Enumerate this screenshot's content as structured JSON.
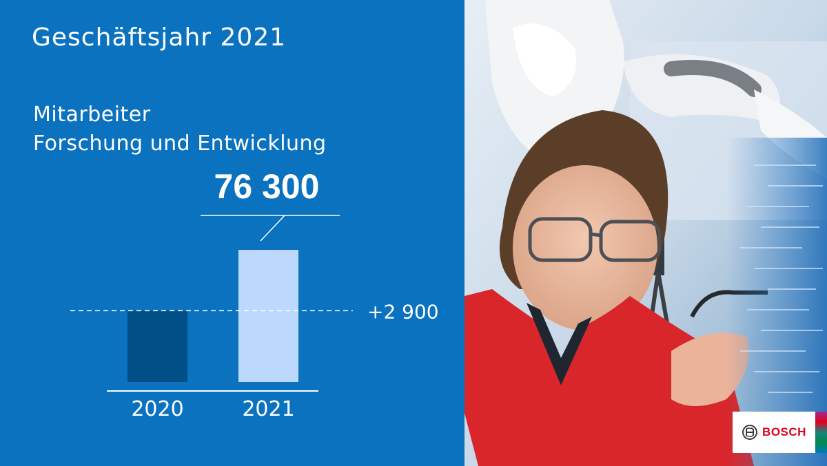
{
  "header": {
    "fiscal_year_title": "Geschäftsjahr 2021"
  },
  "chart_data": {
    "type": "bar",
    "title_lines": [
      "Mitarbeiter",
      "Forschung und Entwicklung"
    ],
    "categories": [
      "2020",
      "2021"
    ],
    "values": [
      73400,
      76300
    ],
    "value_label": "76 300",
    "delta_label": "+2 900",
    "bar_colors": [
      "#004f87",
      "#bcd9fd"
    ],
    "axis_color": "#ffffff",
    "grid": false
  },
  "photo": {
    "description_icon": "photo-engineer-with-robot"
  },
  "brand": {
    "logo_text": "BOSCH",
    "logo_color": "#e2001a",
    "panel_color": "#0b72c0"
  }
}
